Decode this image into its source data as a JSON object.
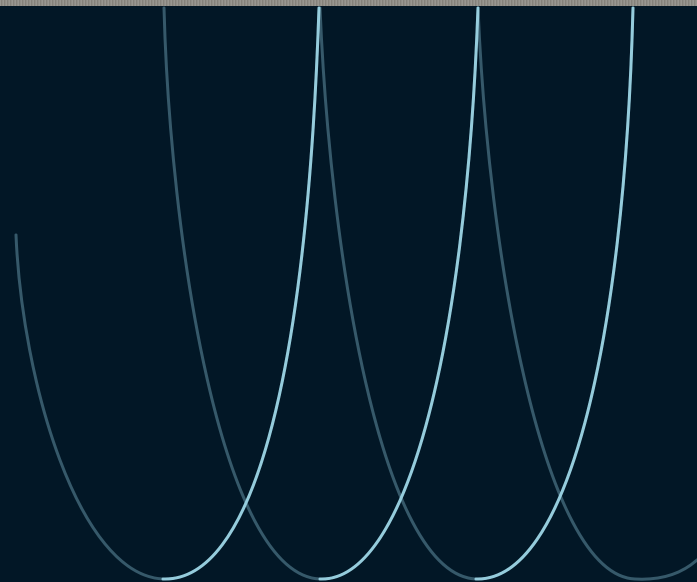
{
  "screen": {
    "background_color": "#021726",
    "top_strip_color": "#8d8a83",
    "arc_faint_color": "#7fb6c7",
    "arc_bright_color": "#9bd3e3"
  }
}
